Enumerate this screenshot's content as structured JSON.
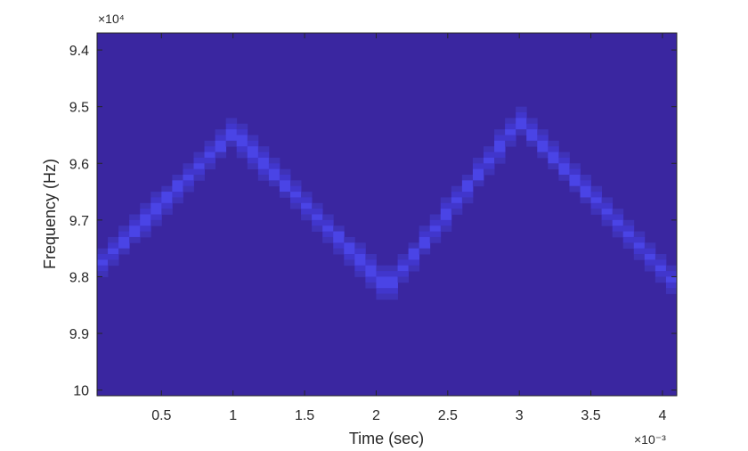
{
  "chart_data": {
    "type": "heatmap",
    "title": "",
    "xlabel": "Time (sec)",
    "ylabel": "Frequency (Hz)",
    "x_exponent_label": "×10⁻³",
    "y_exponent_label": "×10⁴",
    "xlim": [
      0.05,
      4.1
    ],
    "ylim": [
      9.37,
      10.01
    ],
    "y_reversed": true,
    "x_ticks": [
      0.5,
      1,
      1.5,
      2,
      2.5,
      3,
      3.5,
      4
    ],
    "x_tick_labels": [
      "0.5",
      "1",
      "1.5",
      "2",
      "2.5",
      "3",
      "3.5",
      "4"
    ],
    "y_ticks": [
      9.4,
      9.5,
      9.6,
      9.7,
      9.8,
      9.9,
      10
    ],
    "y_tick_labels": [
      "9.4",
      "9.5",
      "9.6",
      "9.7",
      "9.8",
      "9.9",
      "10"
    ],
    "grid": false,
    "colors": {
      "background": "#3a26a0",
      "ridge_edge": "#3f32b8",
      "ridge_mid": "#4136cc",
      "ridge_peak": "#4a44e6"
    },
    "series": [
      {
        "x": [
          0.05,
          1.0,
          2.08,
          3.0,
          4.08
        ],
        "y": [
          9.785,
          9.545,
          9.82,
          9.525,
          9.81
        ]
      }
    ]
  }
}
